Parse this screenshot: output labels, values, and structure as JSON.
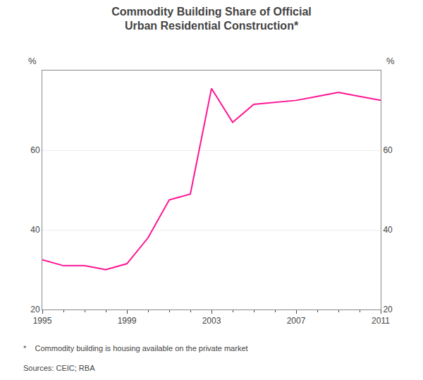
{
  "chart_data": {
    "type": "line",
    "title": "Commodity Building Share of Official\nUrban Residential Construction*",
    "ylabel": "%",
    "y2label": "%",
    "annotations": [
      "*    Commodity building is housing available on the private market",
      "Sources: CEIC; RBA"
    ],
    "x": [
      1995,
      1996,
      1997,
      1998,
      1999,
      2000,
      2001,
      2002,
      2003,
      2004,
      2005,
      2006,
      2007,
      2008,
      2009,
      2010,
      2011
    ],
    "values": [
      32.5,
      31.0,
      31.0,
      30.0,
      31.5,
      38.0,
      47.5,
      49.0,
      75.5,
      67.0,
      71.5,
      72.0,
      72.5,
      73.5,
      74.5,
      73.5,
      72.5
    ],
    "color": "#FF1493",
    "xlim": [
      1995,
      2011
    ],
    "xticks": [
      1995,
      1999,
      2003,
      2007,
      2011
    ],
    "ylim": [
      20,
      80
    ],
    "yticks": [
      20,
      40,
      60
    ],
    "y2lim": [
      20,
      80
    ],
    "y2ticks": [
      20,
      40,
      60
    ],
    "grid": true
  }
}
